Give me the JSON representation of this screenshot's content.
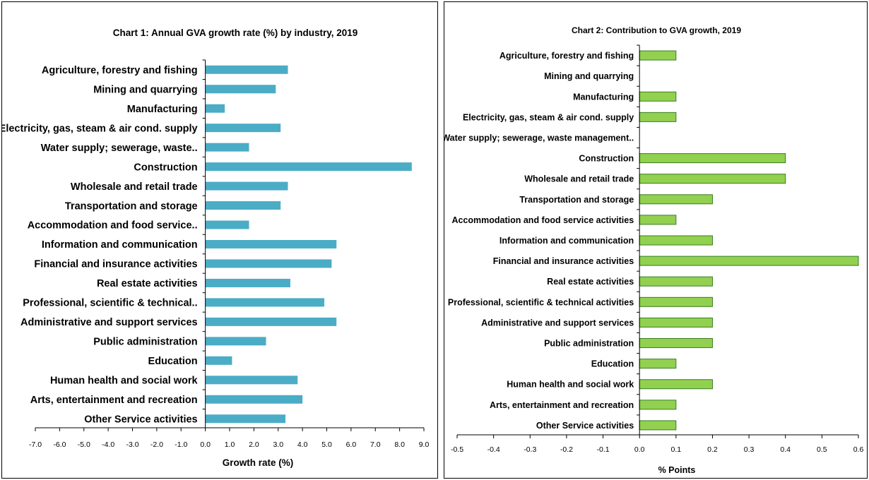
{
  "chart_data": [
    {
      "type": "bar",
      "orientation": "horizontal",
      "title": "Chart 1: Annual GVA growth rate (%) by industry, 2019",
      "xlabel": "Growth rate (%)",
      "ylabel": "",
      "xlim": [
        -7,
        9
      ],
      "xticks": [
        "-7.0",
        "-6.0",
        "-5.0",
        "-4.0",
        "-3.0",
        "-2.0",
        "-1.0",
        "0.0",
        "1.0",
        "2.0",
        "3.0",
        "4.0",
        "5.0",
        "6.0",
        "7.0",
        "8.0",
        "9.0"
      ],
      "grid": false,
      "legend": "none",
      "bar_color": "#4BACC6",
      "categories": [
        "Agriculture, forestry and fishing",
        "Mining and quarrying",
        "Manufacturing",
        "Electricity, gas, steam & air cond. supply",
        "Water supply; sewerage, waste..",
        "Construction",
        "Wholesale and retail trade",
        "Transportation and storage",
        "Accommodation and food service..",
        "Information and communication",
        "Financial and insurance activities",
        "Real estate activities",
        "Professional, scientific & technical..",
        "Administrative and support services",
        "Public administration",
        "Education",
        "Human health and social work",
        "Arts, entertainment and recreation",
        "Other Service activities"
      ],
      "values": [
        3.4,
        2.9,
        0.8,
        3.1,
        1.8,
        8.5,
        3.4,
        3.1,
        1.8,
        5.4,
        5.2,
        3.5,
        4.9,
        5.4,
        2.5,
        1.1,
        3.8,
        4.0,
        3.3
      ]
    },
    {
      "type": "bar",
      "orientation": "horizontal",
      "title": "Chart 2: Contribution to GVA growth, 2019",
      "xlabel": "% Points",
      "ylabel": "",
      "xlim": [
        -0.5,
        0.6
      ],
      "xticks": [
        "-0.5",
        "-0.4",
        "-0.3",
        "-0.2",
        "-0.1",
        "0.0",
        "0.1",
        "0.2",
        "0.3",
        "0.4",
        "0.5",
        "0.6"
      ],
      "grid": false,
      "legend": "none",
      "bar_color": "#92D050",
      "bar_edge": "#3A7D22",
      "categories": [
        "Agriculture, forestry and fishing",
        "Mining and quarrying",
        "Manufacturing",
        "Electricity, gas, steam & air cond. supply",
        "Water supply; sewerage, waste management..",
        "Construction",
        "Wholesale and retail trade",
        "Transportation and storage",
        "Accommodation and food service activities",
        "Information and communication",
        "Financial and insurance activities",
        "Real estate activities",
        "Professional, scientific & technical  activities",
        "Administrative and support services",
        "Public administration",
        "Education",
        "Human health and social work",
        "Arts, entertainment and recreation",
        "Other Service activities"
      ],
      "values": [
        0.1,
        0.0,
        0.1,
        0.1,
        0.0,
        0.4,
        0.4,
        0.2,
        0.1,
        0.2,
        0.6,
        0.2,
        0.2,
        0.2,
        0.2,
        0.1,
        0.2,
        0.1,
        0.1
      ]
    }
  ]
}
